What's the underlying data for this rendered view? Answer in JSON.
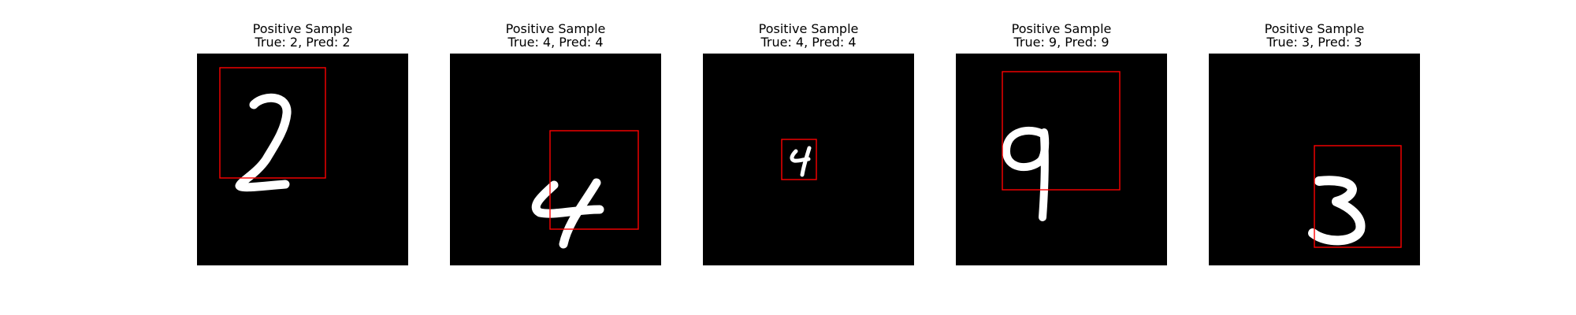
{
  "panels": [
    {
      "title_line_1": "Positive Sample",
      "title_line_2": "True: 2, Pred: 2",
      "digit": "2",
      "box_color": "#ff0000"
    },
    {
      "title_line_1": "Positive Sample",
      "title_line_2": "True: 4, Pred: 4",
      "digit": "4",
      "box_color": "#ff0000"
    },
    {
      "title_line_1": "Positive Sample",
      "title_line_2": "True: 4, Pred: 4",
      "digit": "4",
      "box_color": "#ff0000"
    },
    {
      "title_line_1": "Positive Sample",
      "title_line_2": "True: 9, Pred: 9",
      "digit": "9",
      "box_color": "#ff0000"
    },
    {
      "title_line_1": "Positive Sample",
      "title_line_2": "True: 3, Pred: 3",
      "digit": "3",
      "box_color": "#ff0000"
    }
  ],
  "image_background": "#000000",
  "digit_color": "#ffffff"
}
